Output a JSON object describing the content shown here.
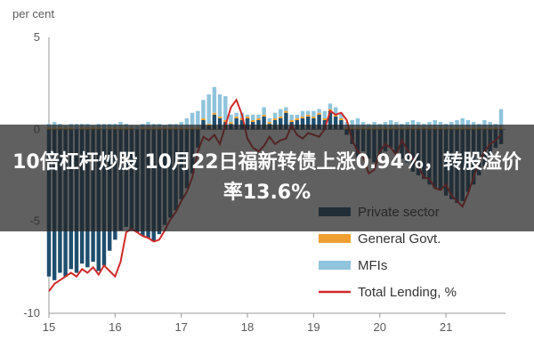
{
  "banner": {
    "title": "10倍杠杆炒股 10月22日福新转债上涨0.94%，转股溢价率13.6%"
  },
  "colors": {
    "private_sector": "#1f4e6e",
    "general_govt": "#f0a030",
    "mfis": "#8fc4dc",
    "total_lending": "#d02a2a",
    "banner_bg": "#232323"
  },
  "chart_data": {
    "type": "bar",
    "unit_label": "per cent",
    "ylim": [
      -10,
      5
    ],
    "y_ticks": [
      "5",
      "0",
      "-5",
      "-10"
    ],
    "x_ticks": [
      "15",
      "16",
      "17",
      "18",
      "19",
      "20",
      "21"
    ],
    "xlim": [
      2015,
      2021.9
    ],
    "x": [
      2015.0,
      2015.083,
      2015.167,
      2015.25,
      2015.333,
      2015.417,
      2015.5,
      2015.583,
      2015.667,
      2015.75,
      2015.833,
      2015.917,
      2016.0,
      2016.083,
      2016.167,
      2016.25,
      2016.333,
      2016.417,
      2016.5,
      2016.583,
      2016.667,
      2016.75,
      2016.833,
      2016.917,
      2017.0,
      2017.083,
      2017.167,
      2017.25,
      2017.333,
      2017.417,
      2017.5,
      2017.583,
      2017.667,
      2017.75,
      2017.833,
      2017.917,
      2018.0,
      2018.083,
      2018.167,
      2018.25,
      2018.333,
      2018.417,
      2018.5,
      2018.583,
      2018.667,
      2018.75,
      2018.833,
      2018.917,
      2019.0,
      2019.083,
      2019.167,
      2019.25,
      2019.333,
      2019.417,
      2019.5,
      2019.583,
      2019.667,
      2019.75,
      2019.833,
      2019.917,
      2020.0,
      2020.083,
      2020.167,
      2020.25,
      2020.333,
      2020.417,
      2020.5,
      2020.583,
      2020.667,
      2020.75,
      2020.833,
      2020.917,
      2021.0,
      2021.083,
      2021.167,
      2021.25,
      2021.333,
      2021.417,
      2021.5,
      2021.583,
      2021.667,
      2021.75,
      2021.833
    ],
    "series": [
      {
        "name": "Private sector",
        "kind": "bar",
        "values": [
          -8.0,
          -8.2,
          -7.8,
          -8.0,
          -7.6,
          -7.8,
          -7.3,
          -7.5,
          -7.2,
          -7.7,
          -7.4,
          -6.6,
          -6.0,
          -5.5,
          -5.3,
          -5.4,
          -5.6,
          -5.8,
          -5.9,
          -6.1,
          -5.7,
          -5.2,
          -4.8,
          -4.4,
          -3.8,
          -3.2,
          -2.4,
          -1.0,
          0.5,
          0.2,
          0.8,
          0.6,
          0.4,
          0.3,
          0.6,
          0.5,
          0.6,
          0.4,
          0.5,
          0.7,
          0.3,
          0.5,
          0.6,
          0.9,
          0.4,
          0.5,
          0.6,
          0.7,
          0.6,
          0.8,
          0.5,
          1.0,
          0.7,
          0.5,
          -0.3,
          -0.8,
          -1.5,
          -1.2,
          -1.6,
          -1.8,
          -1.4,
          -1.2,
          -1.0,
          -1.3,
          -1.6,
          -1.8,
          -2.3,
          -2.5,
          -2.7,
          -3.0,
          -3.2,
          -3.3,
          -3.6,
          -3.8,
          -4.0,
          -3.9,
          -3.4,
          -3.0,
          -2.5,
          -2.0,
          -1.5,
          -1.0,
          -0.8
        ]
      },
      {
        "name": "General Govt.",
        "kind": "bar",
        "values": [
          0.1,
          0.1,
          0.1,
          0.1,
          0.1,
          0.0,
          0.1,
          0.1,
          0.1,
          0.1,
          0.0,
          0.1,
          0.1,
          0.1,
          0.1,
          0.1,
          0.0,
          0.1,
          0.1,
          0.1,
          0.1,
          0.1,
          0.1,
          0.1,
          0.1,
          0.1,
          0.1,
          0.1,
          0.1,
          0.1,
          0.1,
          0.1,
          0.1,
          0.1,
          0.1,
          0.1,
          0.1,
          0.1,
          0.1,
          0.1,
          0.1,
          0.1,
          0.1,
          0.1,
          0.1,
          0.1,
          0.1,
          0.1,
          0.1,
          0.1,
          0.1,
          0.1,
          0.1,
          0.1,
          0.1,
          0.1,
          0.1,
          0.1,
          0.1,
          0.1,
          0.1,
          0.1,
          0.1,
          0.1,
          0.1,
          0.1,
          0.1,
          0.1,
          0.1,
          0.1,
          0.1,
          0.1,
          0.1,
          0.1,
          0.1,
          0.1,
          0.1,
          0.1,
          0.1,
          0.1,
          0.1,
          0.1,
          0.1
        ]
      },
      {
        "name": "MFIs",
        "kind": "bar",
        "values": [
          0.2,
          0.3,
          0.2,
          0.1,
          0.2,
          0.3,
          0.2,
          0.2,
          0.1,
          0.2,
          0.3,
          0.2,
          0.2,
          0.3,
          0.2,
          0.1,
          0.2,
          0.2,
          0.3,
          0.2,
          0.2,
          0.1,
          0.2,
          0.2,
          0.3,
          0.5,
          0.8,
          0.9,
          1.0,
          1.6,
          1.4,
          1.2,
          1.3,
          0.4,
          0.2,
          0.3,
          0.1,
          0.3,
          0.2,
          0.4,
          0.2,
          0.3,
          0.4,
          0.2,
          0.3,
          0.2,
          0.3,
          0.2,
          0.3,
          0.2,
          0.4,
          0.3,
          0.4,
          0.3,
          0.3,
          0.4,
          0.5,
          0.3,
          0.2,
          0.3,
          0.2,
          0.3,
          0.4,
          0.3,
          0.2,
          0.3,
          0.4,
          0.3,
          0.2,
          0.3,
          0.4,
          0.3,
          0.2,
          0.3,
          0.4,
          0.5,
          0.4,
          0.3,
          0.2,
          0.4,
          0.3,
          0.2,
          1.0
        ]
      },
      {
        "name": "Total Lending, %",
        "kind": "line",
        "values": [
          -8.8,
          -8.4,
          -8.2,
          -8.0,
          -7.8,
          -8.0,
          -7.6,
          -7.8,
          -7.5,
          -7.9,
          -7.4,
          -7.7,
          -8.0,
          -7.2,
          -5.6,
          -5.4,
          -5.6,
          -5.8,
          -5.9,
          -6.1,
          -6.0,
          -5.5,
          -4.9,
          -4.5,
          -3.9,
          -3.4,
          -2.6,
          -1.2,
          -0.4,
          -0.6,
          -0.3,
          -0.8,
          0.2,
          1.2,
          1.6,
          0.8,
          -0.5,
          -1.0,
          -1.2,
          -0.9,
          -0.4,
          -0.8,
          -0.6,
          -0.5,
          0.2,
          -0.3,
          -0.5,
          -0.2,
          -0.3,
          -0.4,
          0.0,
          1.0,
          0.8,
          0.9,
          0.5,
          -0.6,
          -1.2,
          -1.5,
          -2.4,
          -2.2,
          -1.2,
          -0.8,
          -1.0,
          -1.4,
          -0.6,
          -1.1,
          -1.6,
          -2.0,
          -2.6,
          -2.7,
          -3.2,
          -3.3,
          -3.0,
          -3.6,
          -3.9,
          -4.2,
          -3.5,
          -2.6,
          -1.8,
          -1.2,
          -0.8,
          -0.6,
          -0.3
        ]
      }
    ],
    "legend": [
      "Private sector",
      "General Govt.",
      "MFIs",
      "Total Lending, %"
    ],
    "legend_position": "bottom-right"
  }
}
